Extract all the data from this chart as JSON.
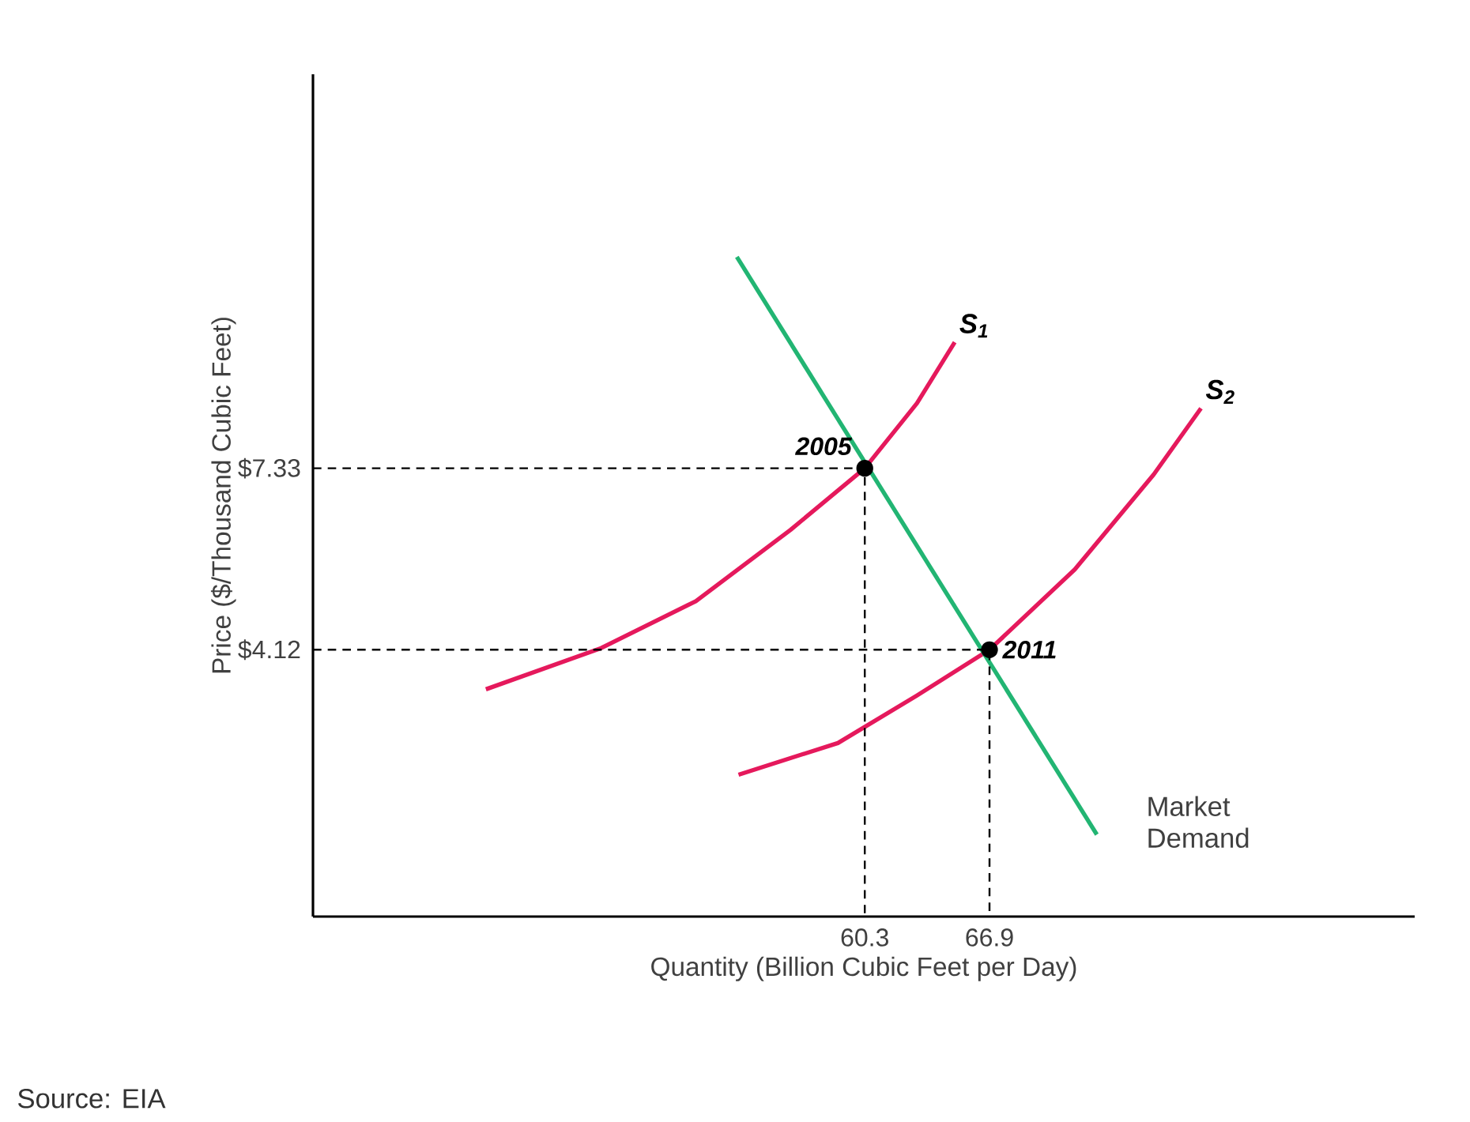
{
  "chart_data": {
    "type": "line",
    "xlabel": "Quantity (Billion Cubic Feet per Day)",
    "ylabel": "Price ($/Thousand Cubic Feet)",
    "xlim": [
      31.1,
      89.4
    ],
    "ylim": [
      -0.6,
      14.3
    ],
    "xticks": [
      60.3,
      66.9
    ],
    "yticks": [
      {
        "value": 7.33,
        "label": "$7.33"
      },
      {
        "value": 4.12,
        "label": "$4.12"
      }
    ],
    "legend": false,
    "grid": false,
    "series": [
      {
        "name": "S$_{1}$",
        "color": "#e5195c",
        "x": [
          40.25,
          46.35,
          51.36,
          56.37,
          60.3,
          63.06,
          65.06
        ],
        "values": [
          3.42,
          4.15,
          4.98,
          6.24,
          7.33,
          8.48,
          9.56
        ]
      },
      {
        "name": "S$_{2}$",
        "color": "#e5195c",
        "x": [
          53.62,
          58.88,
          63.06,
          66.9,
          71.41,
          75.59,
          78.09
        ],
        "values": [
          1.91,
          2.47,
          3.31,
          4.12,
          5.54,
          7.22,
          8.39
        ]
      },
      {
        "name": "Market Demand",
        "color": "#22b573",
        "x": [
          53.53,
          72.58
        ],
        "values": [
          11.07,
          0.85
        ]
      },
      {
        "color": "#000000",
        "line_style": "dashed",
        "x": [
          31.1,
          60.3,
          60.3
        ],
        "values": [
          7.33,
          7.33,
          -0.6
        ]
      },
      {
        "color": "#000000",
        "line_style": "dashed",
        "x": [
          31.1,
          66.9,
          66.9
        ],
        "values": [
          4.12,
          4.12,
          -0.6
        ]
      },
      {
        "type": "scatter",
        "marker": "circle",
        "color": "#000000",
        "x": [
          60.3,
          66.9
        ],
        "values": [
          7.33,
          4.12
        ]
      }
    ],
    "annotations": [
      {
        "text": "2005",
        "x": 60.3,
        "y": 7.33
      },
      {
        "text": "2011",
        "x": 66.9,
        "y": 4.12
      },
      "Source: EIA"
    ]
  }
}
